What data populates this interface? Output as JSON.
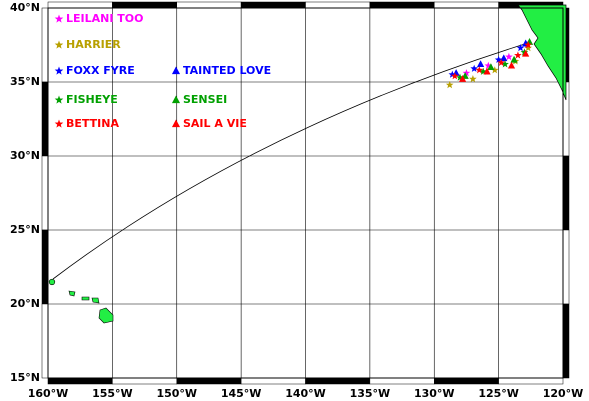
{
  "chart_data": {
    "type": "map",
    "xlim": [
      -160,
      -120
    ],
    "ylim": [
      15,
      40
    ],
    "xticks": [
      {
        "value": -160,
        "label": "160°W"
      },
      {
        "value": -155,
        "label": "155°W"
      },
      {
        "value": -150,
        "label": "150°W"
      },
      {
        "value": -145,
        "label": "145°W"
      },
      {
        "value": -140,
        "label": "140°W"
      },
      {
        "value": -135,
        "label": "135°W"
      },
      {
        "value": -130,
        "label": "130°W"
      },
      {
        "value": -125,
        "label": "125°W"
      },
      {
        "value": -120,
        "label": "120°W"
      }
    ],
    "yticks": [
      {
        "value": 15,
        "label": "15°N"
      },
      {
        "value": 20,
        "label": "20°N"
      },
      {
        "value": 25,
        "label": "25°N"
      },
      {
        "value": 30,
        "label": "30°N"
      },
      {
        "value": 35,
        "label": "35°N"
      },
      {
        "value": 40,
        "label": "40°N"
      }
    ],
    "grid": true,
    "series": [
      {
        "name": "LEILANI TOO",
        "color": "#ff00ff",
        "marker": "star",
        "lon": [
          -127.5,
          -125.8,
          -124.2,
          -122.8
        ],
        "lat": [
          35.6,
          36.1,
          36.7,
          37.5
        ]
      },
      {
        "name": "HARRIER",
        "color": "#b8a000",
        "marker": "star",
        "lon": [
          -128.8,
          -127.0,
          -125.3,
          -123.7,
          -122.7
        ],
        "lat": [
          34.8,
          35.2,
          35.8,
          36.4,
          37.3
        ]
      },
      {
        "name": "FOXX FYRE",
        "color": "#0000ff",
        "marker": "star",
        "lon": [
          -128.6,
          -126.9,
          -125.0,
          -123.3
        ],
        "lat": [
          35.5,
          35.9,
          36.5,
          37.3
        ]
      },
      {
        "name": "TAINTED LOVE",
        "color": "#0000ff",
        "marker": "triangle",
        "lon": [
          -128.3,
          -126.4,
          -124.6,
          -122.9
        ],
        "lat": [
          35.6,
          36.2,
          36.6,
          37.6
        ]
      },
      {
        "name": "FISHEYE",
        "color": "#00a000",
        "marker": "star",
        "lon": [
          -128.0,
          -126.2,
          -124.5,
          -123.0
        ],
        "lat": [
          35.3,
          35.7,
          36.2,
          37.0
        ]
      },
      {
        "name": "SENSEI",
        "color": "#00a000",
        "marker": "triangle",
        "lon": [
          -127.6,
          -125.6,
          -123.8,
          -122.6
        ],
        "lat": [
          35.4,
          36.0,
          36.5,
          37.7
        ]
      },
      {
        "name": "BETTINA",
        "color": "#ff0000",
        "marker": "star",
        "lon": [
          -128.4,
          -126.5,
          -124.8,
          -123.5,
          -122.7
        ],
        "lat": [
          35.4,
          35.8,
          36.3,
          36.8,
          37.5
        ]
      },
      {
        "name": "SAIL A VIE",
        "color": "#ff0000",
        "marker": "triangle",
        "lon": [
          -127.8,
          -125.9,
          -124.0,
          -122.9
        ],
        "lat": [
          35.2,
          35.7,
          36.1,
          36.9
        ]
      }
    ]
  }
}
